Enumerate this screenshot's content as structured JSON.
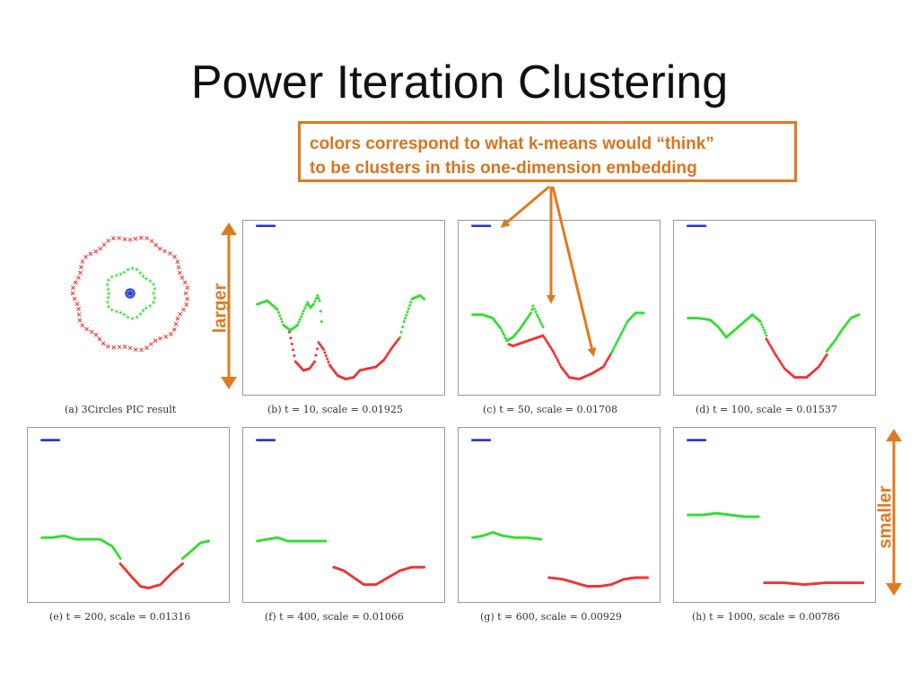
{
  "slide": {
    "title": "Power Iteration Clustering",
    "callout_line1": "colors correspond to what k-means would “think”",
    "callout_line2": "to be clusters in this one-dimension embedding",
    "label_larger": "larger",
    "label_smaller": "smaller",
    "accent_color": "#e07a1f"
  },
  "figure": {
    "colors": {
      "cluster_blue": "#2233cc",
      "cluster_green": "#33dd33",
      "cluster_red": "#ee3333"
    },
    "panel_a": {
      "caption": "(a) 3Circles PIC result",
      "circles": [
        {
          "cluster": "red",
          "radius": 1.0,
          "marker": "x"
        },
        {
          "cluster": "green",
          "radius": 0.42,
          "marker": "+"
        },
        {
          "cluster": "blue",
          "radius": 0.05,
          "marker": "o"
        }
      ]
    },
    "embeddings": [
      {
        "caption": "(b) t = 10, scale = 0.01925",
        "t": 10,
        "scale": 0.01925,
        "green": [
          [
            0.07,
            0.52
          ],
          [
            0.12,
            0.54
          ],
          [
            0.17,
            0.49
          ],
          [
            0.2,
            0.4
          ],
          [
            0.235,
            0.37
          ],
          [
            0.27,
            0.4
          ],
          [
            0.3,
            0.48
          ],
          [
            0.32,
            0.53
          ],
          [
            0.335,
            0.5
          ],
          [
            0.35,
            0.52
          ],
          [
            0.37,
            0.57
          ],
          [
            0.38,
            0.54
          ],
          [
            0.39,
            0.42
          ]
        ],
        "red": [
          [
            0.23,
            0.36
          ],
          [
            0.26,
            0.19
          ],
          [
            0.3,
            0.14
          ],
          [
            0.33,
            0.15
          ],
          [
            0.355,
            0.19
          ],
          [
            0.375,
            0.3
          ],
          [
            0.4,
            0.26
          ],
          [
            0.43,
            0.17
          ],
          [
            0.47,
            0.11
          ],
          [
            0.51,
            0.09
          ],
          [
            0.55,
            0.1
          ],
          [
            0.58,
            0.14
          ],
          [
            0.62,
            0.15
          ],
          [
            0.66,
            0.16
          ],
          [
            0.7,
            0.2
          ],
          [
            0.74,
            0.27
          ],
          [
            0.78,
            0.33
          ]
        ],
        "green_tail": [
          [
            0.78,
            0.33
          ],
          [
            0.8,
            0.42
          ],
          [
            0.84,
            0.55
          ],
          [
            0.88,
            0.57
          ],
          [
            0.9,
            0.55
          ]
        ],
        "blue_y": 0.97
      },
      {
        "caption": "(c) t = 50, scale = 0.01708",
        "t": 50,
        "scale": 0.01708,
        "green": [
          [
            0.07,
            0.46
          ],
          [
            0.12,
            0.46
          ],
          [
            0.17,
            0.44
          ],
          [
            0.21,
            0.38
          ],
          [
            0.24,
            0.31
          ],
          [
            0.27,
            0.33
          ],
          [
            0.3,
            0.37
          ],
          [
            0.33,
            0.42
          ],
          [
            0.36,
            0.47
          ],
          [
            0.37,
            0.51
          ],
          [
            0.39,
            0.46
          ],
          [
            0.42,
            0.39
          ]
        ],
        "red": [
          [
            0.25,
            0.29
          ],
          [
            0.27,
            0.28
          ],
          [
            0.42,
            0.34
          ],
          [
            0.47,
            0.25
          ],
          [
            0.51,
            0.16
          ],
          [
            0.55,
            0.1
          ],
          [
            0.6,
            0.09
          ],
          [
            0.66,
            0.12
          ],
          [
            0.72,
            0.16
          ],
          [
            0.76,
            0.24
          ]
        ],
        "green_tail": [
          [
            0.76,
            0.24
          ],
          [
            0.8,
            0.33
          ],
          [
            0.84,
            0.42
          ],
          [
            0.88,
            0.47
          ],
          [
            0.92,
            0.47
          ]
        ],
        "blue_y": 0.97
      },
      {
        "caption": "(d) t = 100, scale = 0.01537",
        "t": 100,
        "scale": 0.01537,
        "green": [
          [
            0.07,
            0.44
          ],
          [
            0.12,
            0.44
          ],
          [
            0.18,
            0.43
          ],
          [
            0.22,
            0.39
          ],
          [
            0.26,
            0.33
          ],
          [
            0.3,
            0.37
          ],
          [
            0.35,
            0.42
          ],
          [
            0.39,
            0.46
          ],
          [
            0.43,
            0.42
          ],
          [
            0.46,
            0.34
          ]
        ],
        "red": [
          [
            0.46,
            0.32
          ],
          [
            0.5,
            0.24
          ],
          [
            0.55,
            0.15
          ],
          [
            0.6,
            0.1
          ],
          [
            0.66,
            0.1
          ],
          [
            0.72,
            0.16
          ],
          [
            0.76,
            0.23
          ]
        ],
        "green_tail": [
          [
            0.76,
            0.25
          ],
          [
            0.8,
            0.31
          ],
          [
            0.84,
            0.38
          ],
          [
            0.88,
            0.44
          ],
          [
            0.92,
            0.46
          ]
        ],
        "blue_y": 0.97
      },
      {
        "caption": "(e) t = 200, scale = 0.01316",
        "t": 200,
        "scale": 0.01316,
        "green": [
          [
            0.07,
            0.37
          ],
          [
            0.12,
            0.37
          ],
          [
            0.18,
            0.38
          ],
          [
            0.24,
            0.36
          ],
          [
            0.3,
            0.36
          ],
          [
            0.36,
            0.36
          ],
          [
            0.42,
            0.32
          ],
          [
            0.46,
            0.25
          ]
        ],
        "red": [
          [
            0.46,
            0.22
          ],
          [
            0.52,
            0.14
          ],
          [
            0.56,
            0.09
          ],
          [
            0.6,
            0.08
          ],
          [
            0.66,
            0.1
          ],
          [
            0.72,
            0.17
          ],
          [
            0.77,
            0.22
          ]
        ],
        "green_tail": [
          [
            0.77,
            0.25
          ],
          [
            0.82,
            0.3
          ],
          [
            0.86,
            0.34
          ],
          [
            0.9,
            0.35
          ]
        ],
        "blue_y": 0.93
      },
      {
        "caption": "(f) t = 400, scale = 0.01066",
        "t": 400,
        "scale": 0.01066,
        "green": [
          [
            0.07,
            0.35
          ],
          [
            0.12,
            0.36
          ],
          [
            0.17,
            0.37
          ],
          [
            0.22,
            0.35
          ],
          [
            0.3,
            0.35
          ],
          [
            0.36,
            0.35
          ],
          [
            0.41,
            0.35
          ]
        ],
        "red": [
          [
            0.45,
            0.2
          ],
          [
            0.5,
            0.18
          ],
          [
            0.55,
            0.14
          ],
          [
            0.6,
            0.1
          ],
          [
            0.66,
            0.1
          ],
          [
            0.72,
            0.14
          ],
          [
            0.78,
            0.18
          ],
          [
            0.84,
            0.2
          ],
          [
            0.9,
            0.2
          ]
        ],
        "green_tail": [],
        "blue_y": 0.93
      },
      {
        "caption": "(g) t = 600, scale = 0.00929",
        "t": 600,
        "scale": 0.00929,
        "green": [
          [
            0.07,
            0.37
          ],
          [
            0.12,
            0.38
          ],
          [
            0.17,
            0.4
          ],
          [
            0.22,
            0.38
          ],
          [
            0.28,
            0.37
          ],
          [
            0.34,
            0.37
          ],
          [
            0.41,
            0.36
          ]
        ],
        "red": [
          [
            0.45,
            0.14
          ],
          [
            0.52,
            0.13
          ],
          [
            0.58,
            0.11
          ],
          [
            0.64,
            0.09
          ],
          [
            0.7,
            0.09
          ],
          [
            0.76,
            0.1
          ],
          [
            0.82,
            0.13
          ],
          [
            0.88,
            0.14
          ],
          [
            0.94,
            0.14
          ]
        ],
        "green_tail": [],
        "blue_y": 0.93
      },
      {
        "caption": "(h) t = 1000, scale = 0.00786",
        "t": 1000,
        "scale": 0.00786,
        "green": [
          [
            0.07,
            0.5
          ],
          [
            0.14,
            0.5
          ],
          [
            0.21,
            0.51
          ],
          [
            0.28,
            0.5
          ],
          [
            0.35,
            0.49
          ],
          [
            0.42,
            0.49
          ]
        ],
        "red": [
          [
            0.45,
            0.11
          ],
          [
            0.55,
            0.11
          ],
          [
            0.65,
            0.1
          ],
          [
            0.75,
            0.11
          ],
          [
            0.85,
            0.11
          ],
          [
            0.94,
            0.11
          ]
        ],
        "green_tail": [],
        "blue_y": 0.93
      }
    ]
  }
}
